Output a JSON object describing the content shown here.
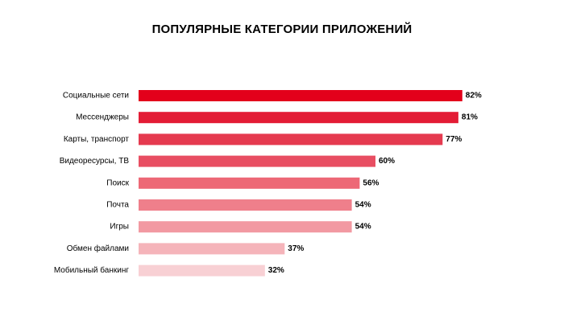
{
  "chart_data": {
    "type": "bar",
    "orientation": "horizontal",
    "title": "ПОПУЛЯРНЫЕ КАТЕГОРИИ ПРИЛОЖЕНИЙ",
    "xlabel": "",
    "ylabel": "",
    "xlim": [
      0,
      100
    ],
    "grid": false,
    "legend": "none",
    "value_suffix": "%",
    "categories": [
      "Социальные сети",
      "Мессенджеры",
      "Карты, транспорт",
      "Видеоресурсы, ТВ",
      "Поиск",
      "Почта",
      "Игры",
      "Обмен файлами",
      "Мобильный банкинг"
    ],
    "values": [
      82,
      81,
      77,
      60,
      56,
      54,
      54,
      37,
      32
    ],
    "data_labels": [
      "82%",
      "81%",
      "77%",
      "60%",
      "56%",
      "54%",
      "54%",
      "37%",
      "32%"
    ],
    "colors": [
      "#e3001b",
      "#e31c35",
      "#e53a4f",
      "#e84e62",
      "#ed6876",
      "#ef7f8b",
      "#f299a2",
      "#f5b4ba",
      "#f8d0d4"
    ]
  }
}
